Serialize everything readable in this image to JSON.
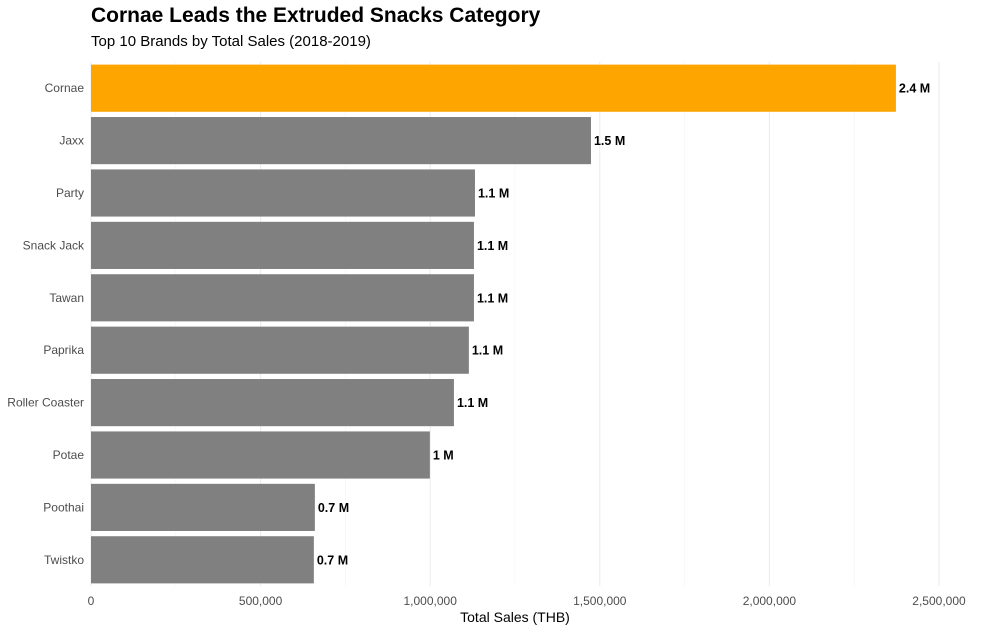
{
  "chart_data": {
    "type": "bar",
    "orientation": "horizontal",
    "title": "Cornae Leads the Extruded Snacks Category",
    "subtitle": "Top 10 Brands by Total Sales (2018-2019)",
    "xlabel": "Total Sales (THB)",
    "ylabel": "",
    "xlim": [
      0,
      2500000
    ],
    "x_ticks": [
      0,
      500000,
      1000000,
      1500000,
      2000000,
      2500000
    ],
    "x_tick_labels": [
      "0",
      "500,000",
      "1,000,000",
      "1,500,000",
      "2,000,000",
      "2,500,000"
    ],
    "grid": true,
    "highlight_color": "#FFA500",
    "default_color": "#808080",
    "categories": [
      "Cornae",
      "Jaxx",
      "Party",
      "Snack Jack",
      "Tawan",
      "Paprika",
      "Roller Coaster",
      "Potae",
      "Poothai",
      "Twistko"
    ],
    "values": [
      2373000,
      1474000,
      1132000,
      1129000,
      1129000,
      1114000,
      1070000,
      999000,
      660000,
      657000
    ],
    "data_labels": [
      "2.4 M",
      "1.5 M",
      "1.1 M",
      "1.1 M",
      "1.1 M",
      "1.1 M",
      "1.1 M",
      "1 M",
      "0.7 M",
      "0.7 M"
    ],
    "highlighted": [
      "Cornae"
    ]
  }
}
